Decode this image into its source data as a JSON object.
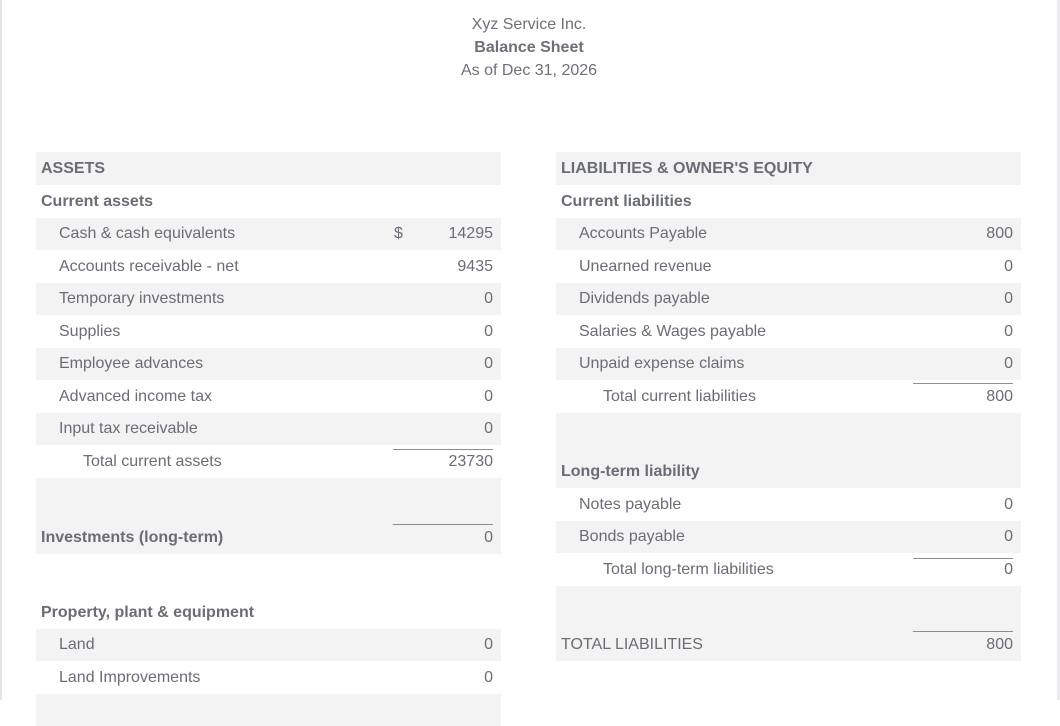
{
  "report": {
    "company": "Xyz Service Inc.",
    "title": "Balance Sheet",
    "date": "As of Dec 31, 2026"
  },
  "assets": {
    "heading": "ASSETS",
    "current": {
      "heading": "Current assets",
      "currency": "$",
      "items": [
        {
          "label": "Cash & cash equivalents",
          "value": "14295"
        },
        {
          "label": "Accounts receivable - net",
          "value": "9435"
        },
        {
          "label": "Temporary investments",
          "value": "0"
        },
        {
          "label": "Supplies",
          "value": "0"
        },
        {
          "label": "Employee advances",
          "value": "0"
        },
        {
          "label": "Advanced income tax",
          "value": "0"
        },
        {
          "label": "Input tax receivable",
          "value": "0"
        }
      ],
      "total_label": "Total current assets",
      "total_value": "23730"
    },
    "investments": {
      "label": "Investments (long-term)",
      "value": "0"
    },
    "ppe": {
      "heading": "Property, plant & equipment",
      "items": [
        {
          "label": "Land",
          "value": "0"
        },
        {
          "label": "Land Improvements",
          "value": "0"
        }
      ]
    }
  },
  "liabilities": {
    "heading": "LIABILITIES & OWNER'S EQUITY",
    "current": {
      "heading": "Current liabilities",
      "items": [
        {
          "label": "Accounts Payable",
          "value": "800"
        },
        {
          "label": "Unearned revenue",
          "value": "0"
        },
        {
          "label": "Dividends payable",
          "value": "0"
        },
        {
          "label": "Salaries & Wages payable",
          "value": "0"
        },
        {
          "label": "Unpaid expense claims",
          "value": "0"
        }
      ],
      "total_label": "Total current liabilities",
      "total_value": "800"
    },
    "long_term": {
      "heading": "Long-term liability",
      "items": [
        {
          "label": "Notes payable",
          "value": "0"
        },
        {
          "label": "Bonds payable",
          "value": "0"
        }
      ],
      "total_label": "Total long-term liabilities",
      "total_value": "0"
    },
    "total": {
      "label": "TOTAL LIABILITIES",
      "value": "800"
    }
  }
}
